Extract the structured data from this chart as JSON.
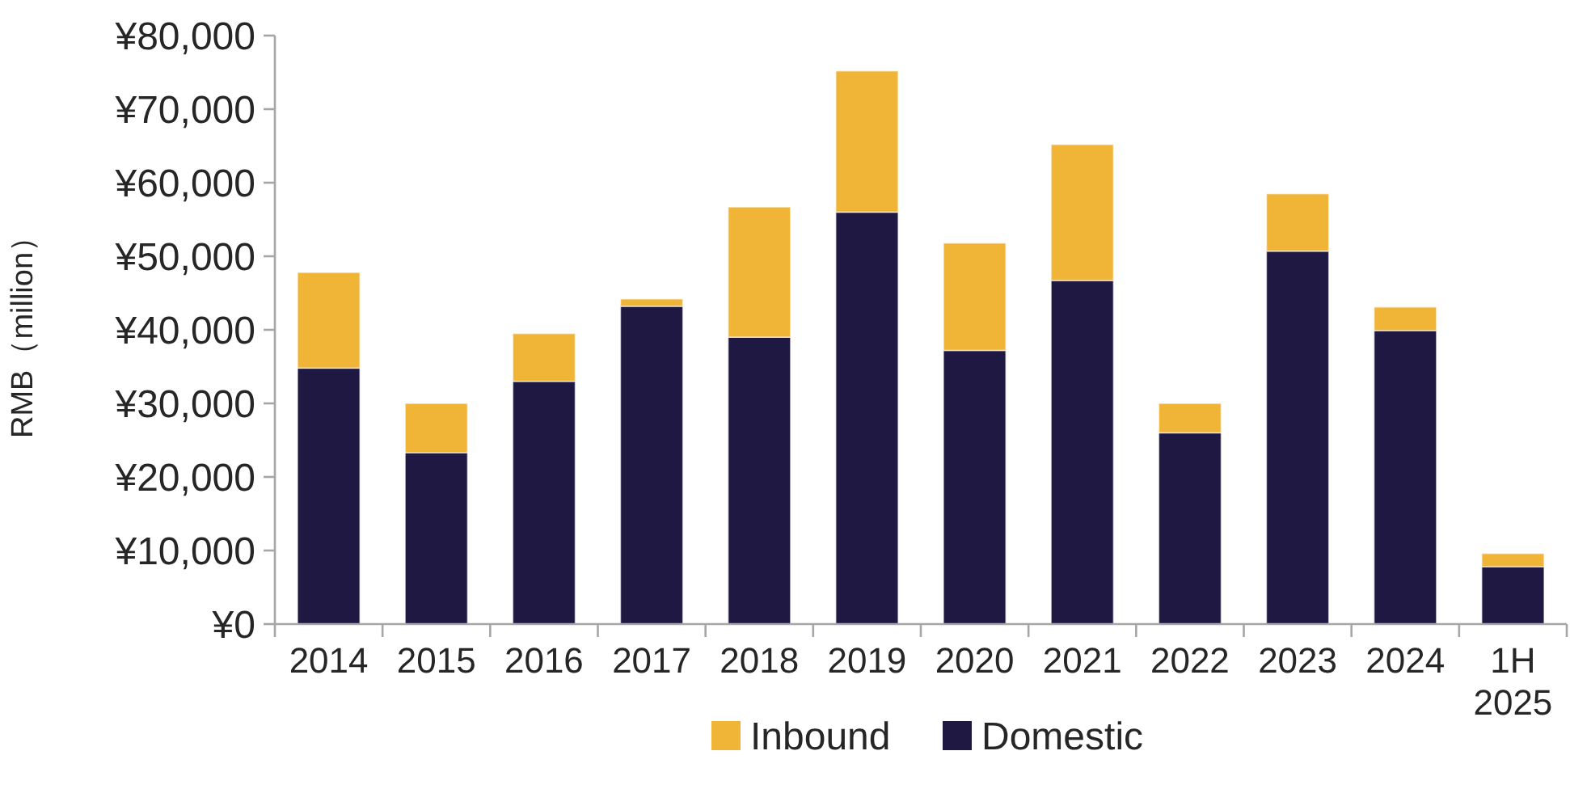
{
  "chart_data": {
    "type": "bar",
    "stacked": true,
    "ylabel": "RMB（million）",
    "categories": [
      "2014",
      "2015",
      "2016",
      "2017",
      "2018",
      "2019",
      "2020",
      "2021",
      "2022",
      "2023",
      "2024",
      "1H 2025"
    ],
    "series": [
      {
        "name": "Domestic",
        "color": "#1e1842",
        "values": [
          34800,
          23300,
          33000,
          43200,
          39000,
          56000,
          37200,
          46700,
          26000,
          50700,
          39900,
          7800
        ]
      },
      {
        "name": "Inbound",
        "color": "#f0b537",
        "values": [
          13000,
          6700,
          6500,
          1000,
          17700,
          19200,
          14600,
          18500,
          4000,
          7800,
          3200,
          1800
        ]
      }
    ],
    "ylim": [
      0,
      80000
    ],
    "yticks": [
      {
        "value": 0,
        "label": "¥0"
      },
      {
        "value": 10000,
        "label": "¥10,000"
      },
      {
        "value": 20000,
        "label": "¥20,000"
      },
      {
        "value": 30000,
        "label": "¥30,000"
      },
      {
        "value": 40000,
        "label": "¥40,000"
      },
      {
        "value": 50000,
        "label": "¥50,000"
      },
      {
        "value": 60000,
        "label": "¥60,000"
      },
      {
        "value": 70000,
        "label": "¥70,000"
      },
      {
        "value": 80000,
        "label": "¥80,000"
      }
    ],
    "grid": false,
    "legend": "bottom"
  }
}
